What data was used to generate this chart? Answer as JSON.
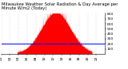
{
  "title": "Milwaukee Weather Solar Radiation & Day Average per Minute W/m2 (Today)",
  "bg_color": "#ffffff",
  "bar_color": "#ff0000",
  "avg_line_color": "#0000ff",
  "avg_value": 200,
  "ylim": [
    0,
    800
  ],
  "yticks": [
    100,
    200,
    300,
    400,
    500,
    600,
    700,
    800
  ],
  "num_points": 1440,
  "peak_minute": 760,
  "peak_value": 820,
  "sigma": 200,
  "noise_seed": 42,
  "grid_color": "#bbbbbb",
  "title_fontsize": 3.8,
  "tick_fontsize": 3.2,
  "figsize": [
    1.6,
    0.87
  ],
  "dpi": 100
}
